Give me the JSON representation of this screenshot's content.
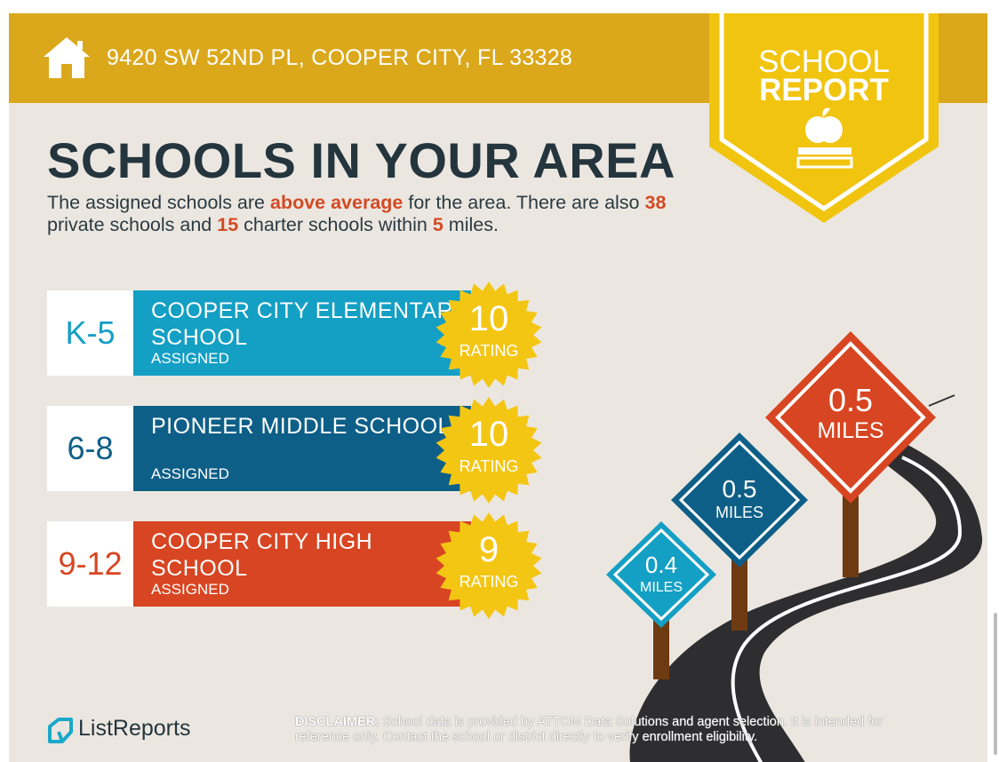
{
  "header": {
    "address": "9420 SW 52ND PL, COOPER CITY, FL 33328",
    "badge_line1": "SCHOOL",
    "badge_line2": "REPORT"
  },
  "title": "SCHOOLS IN YOUR AREA",
  "intro": {
    "p1": "The assigned schools are ",
    "highlight1": "above average",
    "p2": " for the area. There are also ",
    "private_count": "38",
    "p3": " private schools and ",
    "charter_count": "15",
    "p4": " charter schools within ",
    "radius": "5",
    "p5": " miles."
  },
  "schools": [
    {
      "grade": "K-5",
      "name": "COOPER CITY ELEMENTARY SCHOOL",
      "status": "ASSIGNED",
      "rating": "10",
      "rating_label": "RATING",
      "color": "#149fc4"
    },
    {
      "grade": "6-8",
      "name": "PIONEER MIDDLE SCHOOL",
      "status": "ASSIGNED",
      "rating": "10",
      "rating_label": "RATING",
      "color": "#0e5f87"
    },
    {
      "grade": "9-12",
      "name": "COOPER CITY HIGH SCHOOL",
      "status": "ASSIGNED",
      "rating": "9",
      "rating_label": "RATING",
      "color": "#d84522"
    }
  ],
  "signs": [
    {
      "distance": "0.4",
      "unit": "MILES",
      "color": "#149fc4"
    },
    {
      "distance": "0.5",
      "unit": "MILES",
      "color": "#0e5f87"
    },
    {
      "distance": "0.5",
      "unit": "MILES",
      "color": "#d84522"
    }
  ],
  "footer": {
    "brand": "ListReports",
    "disclaimer_label": "DISCLAIMER:",
    "disclaimer_text": " School data is provided by ATTOM Data Solutions and agent selection. It is intended for reference only. Contact the school or district directly to verify enrollment eligibility."
  },
  "colors": {
    "gold": "#dba81c",
    "badge": "#f1c40f",
    "navy": "#24353e",
    "seal": "#f4c614"
  },
  "icons": [
    "house-icon",
    "apple-books-icon",
    "listreports-logo-icon"
  ]
}
